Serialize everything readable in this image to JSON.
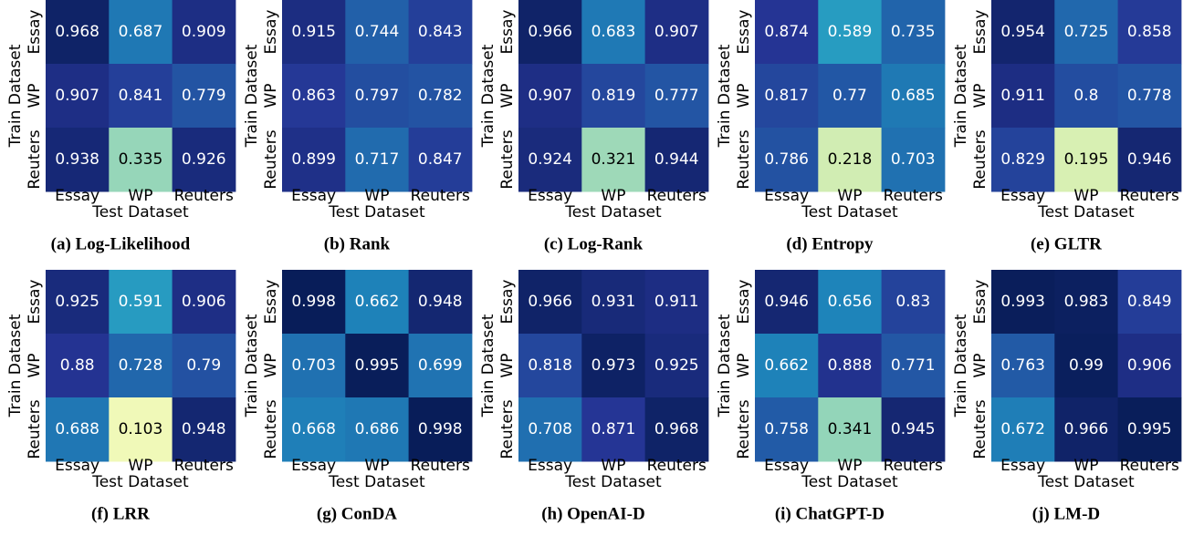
{
  "chart_data": [
    {
      "type": "heatmap",
      "title": "(a) Log-Likelihood",
      "xlabel": "Test Dataset",
      "ylabel": "Train Dataset",
      "x_categories": [
        "Essay",
        "WP",
        "Reuters"
      ],
      "y_categories": [
        "Essay",
        "WP",
        "Reuters"
      ],
      "values": [
        [
          0.968,
          0.687,
          0.909
        ],
        [
          0.907,
          0.841,
          0.779
        ],
        [
          0.938,
          0.335,
          0.926
        ]
      ],
      "colormap": "YlGnBu",
      "color_range": [
        0,
        1
      ]
    },
    {
      "type": "heatmap",
      "title": "(b) Rank",
      "xlabel": "Test Dataset",
      "ylabel": "Train Dataset",
      "x_categories": [
        "Essay",
        "WP",
        "Reuters"
      ],
      "y_categories": [
        "Essay",
        "WP",
        "Reuters"
      ],
      "values": [
        [
          0.915,
          0.744,
          0.843
        ],
        [
          0.863,
          0.797,
          0.782
        ],
        [
          0.899,
          0.717,
          0.847
        ]
      ],
      "colormap": "YlGnBu",
      "color_range": [
        0,
        1
      ]
    },
    {
      "type": "heatmap",
      "title": "(c) Log-Rank",
      "xlabel": "Test Dataset",
      "ylabel": "Train Dataset",
      "x_categories": [
        "Essay",
        "WP",
        "Reuters"
      ],
      "y_categories": [
        "Essay",
        "WP",
        "Reuters"
      ],
      "values": [
        [
          0.966,
          0.683,
          0.907
        ],
        [
          0.907,
          0.819,
          0.777
        ],
        [
          0.924,
          0.321,
          0.944
        ]
      ],
      "colormap": "YlGnBu",
      "color_range": [
        0,
        1
      ]
    },
    {
      "type": "heatmap",
      "title": "(d) Entropy",
      "xlabel": "Test Dataset",
      "ylabel": "Train Dataset",
      "x_categories": [
        "Essay",
        "WP",
        "Reuters"
      ],
      "y_categories": [
        "Essay",
        "WP",
        "Reuters"
      ],
      "values": [
        [
          0.874,
          0.589,
          0.735
        ],
        [
          0.817,
          0.77,
          0.685
        ],
        [
          0.786,
          0.218,
          0.703
        ]
      ],
      "colormap": "YlGnBu",
      "color_range": [
        0,
        1
      ]
    },
    {
      "type": "heatmap",
      "title": "(e) GLTR",
      "xlabel": "Test Dataset",
      "ylabel": "Train Dataset",
      "x_categories": [
        "Essay",
        "WP",
        "Reuters"
      ],
      "y_categories": [
        "Essay",
        "WP",
        "Reuters"
      ],
      "values": [
        [
          0.954,
          0.725,
          0.858
        ],
        [
          0.911,
          0.8,
          0.778
        ],
        [
          0.829,
          0.195,
          0.946
        ]
      ],
      "colormap": "YlGnBu",
      "color_range": [
        0,
        1
      ]
    },
    {
      "type": "heatmap",
      "title": "(f) LRR",
      "xlabel": "Test Dataset",
      "ylabel": "Train Dataset",
      "x_categories": [
        "Essay",
        "WP",
        "Reuters"
      ],
      "y_categories": [
        "Essay",
        "WP",
        "Reuters"
      ],
      "values": [
        [
          0.925,
          0.591,
          0.906
        ],
        [
          0.88,
          0.728,
          0.79
        ],
        [
          0.688,
          0.103,
          0.948
        ]
      ],
      "colormap": "YlGnBu",
      "color_range": [
        0,
        1
      ]
    },
    {
      "type": "heatmap",
      "title": "(g) ConDA",
      "xlabel": "Test Dataset",
      "ylabel": "Train Dataset",
      "x_categories": [
        "Essay",
        "WP",
        "Reuters"
      ],
      "y_categories": [
        "Essay",
        "WP",
        "Reuters"
      ],
      "values": [
        [
          0.998,
          0.662,
          0.948
        ],
        [
          0.703,
          0.995,
          0.699
        ],
        [
          0.668,
          0.686,
          0.998
        ]
      ],
      "colormap": "YlGnBu",
      "color_range": [
        0,
        1
      ]
    },
    {
      "type": "heatmap",
      "title": "(h) OpenAI-D",
      "xlabel": "Test Dataset",
      "ylabel": "Train Dataset",
      "x_categories": [
        "Essay",
        "WP",
        "Reuters"
      ],
      "y_categories": [
        "Essay",
        "WP",
        "Reuters"
      ],
      "values": [
        [
          0.966,
          0.931,
          0.911
        ],
        [
          0.818,
          0.973,
          0.925
        ],
        [
          0.708,
          0.871,
          0.968
        ]
      ],
      "colormap": "YlGnBu",
      "color_range": [
        0,
        1
      ]
    },
    {
      "type": "heatmap",
      "title": "(i) ChatGPT-D",
      "xlabel": "Test Dataset",
      "ylabel": "Train Dataset",
      "x_categories": [
        "Essay",
        "WP",
        "Reuters"
      ],
      "y_categories": [
        "Essay",
        "WP",
        "Reuters"
      ],
      "values": [
        [
          0.946,
          0.656,
          0.83
        ],
        [
          0.662,
          0.888,
          0.771
        ],
        [
          0.758,
          0.341,
          0.945
        ]
      ],
      "colormap": "YlGnBu",
      "color_range": [
        0,
        1
      ]
    },
    {
      "type": "heatmap",
      "title": "(j) LM-D",
      "xlabel": "Test Dataset",
      "ylabel": "Train Dataset",
      "x_categories": [
        "Essay",
        "WP",
        "Reuters"
      ],
      "y_categories": [
        "Essay",
        "WP",
        "Reuters"
      ],
      "values": [
        [
          0.993,
          0.983,
          0.849
        ],
        [
          0.763,
          0.99,
          0.906
        ],
        [
          0.672,
          0.966,
          0.995
        ]
      ],
      "colormap": "YlGnBu",
      "color_range": [
        0,
        1
      ]
    }
  ]
}
